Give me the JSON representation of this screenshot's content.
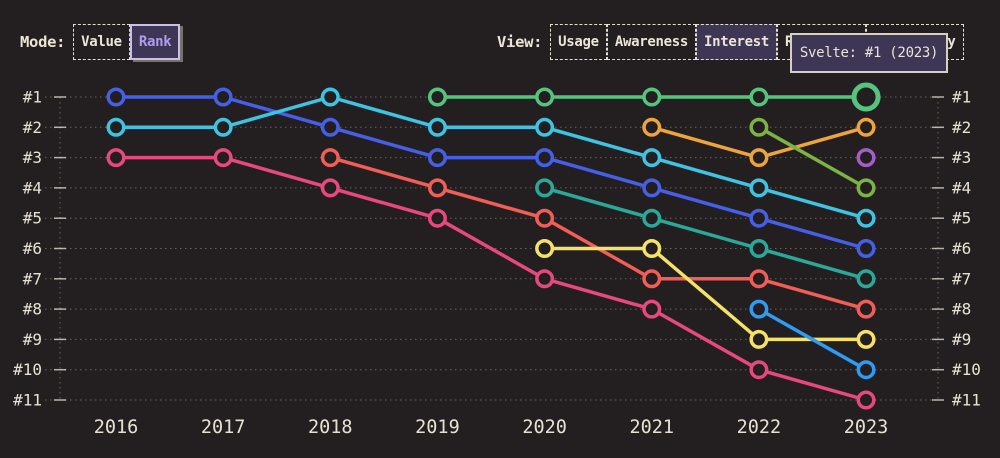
{
  "app": {
    "background": "#231f20",
    "text_color": "#ebe4d6",
    "accent_purple": "#af9cec",
    "panel_purple": "#3d3654"
  },
  "controls": {
    "mode": {
      "label": "Mode:",
      "options": [
        {
          "label": "Value",
          "selected": false
        },
        {
          "label": "Rank",
          "selected": true
        }
      ]
    },
    "view": {
      "label": "View:",
      "options": [
        {
          "label": "Usage",
          "selected": false
        },
        {
          "label": "Awareness",
          "selected": false
        },
        {
          "label": "Interest",
          "selected": true
        },
        {
          "label": "Retention",
          "selected": false
        },
        {
          "label": "Positivity",
          "selected": false
        }
      ]
    }
  },
  "tooltip": {
    "text": "Svelte: #1 (2023)"
  },
  "chart_data": {
    "type": "line",
    "variant": "bump-chart-rankings",
    "grid": "dotted-horizontal",
    "x_labels": [
      "2016",
      "2017",
      "2018",
      "2019",
      "2020",
      "2021",
      "2022",
      "2023"
    ],
    "rank_labels": [
      "#1",
      "#2",
      "#3",
      "#4",
      "#5",
      "#6",
      "#7",
      "#8",
      "#9",
      "#10",
      "#11"
    ],
    "y_axis_sides": "both",
    "series": [
      {
        "id": "blue",
        "color": "#4560e6",
        "points": [
          [
            2016,
            1
          ],
          [
            2017,
            1
          ],
          [
            2018,
            2
          ],
          [
            2019,
            3
          ],
          [
            2020,
            3
          ],
          [
            2021,
            4
          ],
          [
            2022,
            5
          ],
          [
            2023,
            6
          ]
        ]
      },
      {
        "id": "cyan",
        "color": "#3fc3e3",
        "points": [
          [
            2016,
            2
          ],
          [
            2017,
            2
          ],
          [
            2018,
            1
          ],
          [
            2019,
            2
          ],
          [
            2020,
            2
          ],
          [
            2021,
            3
          ],
          [
            2022,
            4
          ],
          [
            2023,
            5
          ]
        ]
      },
      {
        "id": "pink",
        "color": "#e84880",
        "points": [
          [
            2016,
            3
          ],
          [
            2017,
            3
          ],
          [
            2018,
            4
          ],
          [
            2019,
            5
          ],
          [
            2020,
            7
          ],
          [
            2021,
            8
          ],
          [
            2022,
            10
          ],
          [
            2023,
            11
          ]
        ]
      },
      {
        "id": "red",
        "color": "#f05e56",
        "points": [
          [
            2018,
            3
          ],
          [
            2019,
            4
          ],
          [
            2020,
            5
          ],
          [
            2021,
            7
          ],
          [
            2022,
            7
          ],
          [
            2023,
            8
          ]
        ]
      },
      {
        "id": "green",
        "label": "Svelte",
        "color": "#55c57e",
        "emphasis_last": true,
        "points": [
          [
            2019,
            1
          ],
          [
            2020,
            1
          ],
          [
            2021,
            1
          ],
          [
            2022,
            1
          ],
          [
            2023,
            1
          ]
        ]
      },
      {
        "id": "teal",
        "color": "#2ca89a",
        "points": [
          [
            2020,
            4
          ],
          [
            2021,
            5
          ],
          [
            2022,
            6
          ],
          [
            2023,
            7
          ]
        ]
      },
      {
        "id": "yellow",
        "color": "#f3e168",
        "points": [
          [
            2020,
            6
          ],
          [
            2021,
            6
          ],
          [
            2022,
            9
          ],
          [
            2023,
            9
          ]
        ]
      },
      {
        "id": "orange",
        "color": "#eca43d",
        "points": [
          [
            2021,
            2
          ],
          [
            2022,
            3
          ],
          [
            2023,
            2
          ]
        ]
      },
      {
        "id": "olive",
        "color": "#7db342",
        "points": [
          [
            2022,
            2
          ],
          [
            2023,
            4
          ]
        ]
      },
      {
        "id": "light-blue",
        "color": "#2f9bf2",
        "points": [
          [
            2022,
            8
          ],
          [
            2023,
            10
          ]
        ]
      },
      {
        "id": "purple",
        "color": "#a45fc7",
        "points": [
          [
            2023,
            3
          ]
        ]
      }
    ]
  }
}
